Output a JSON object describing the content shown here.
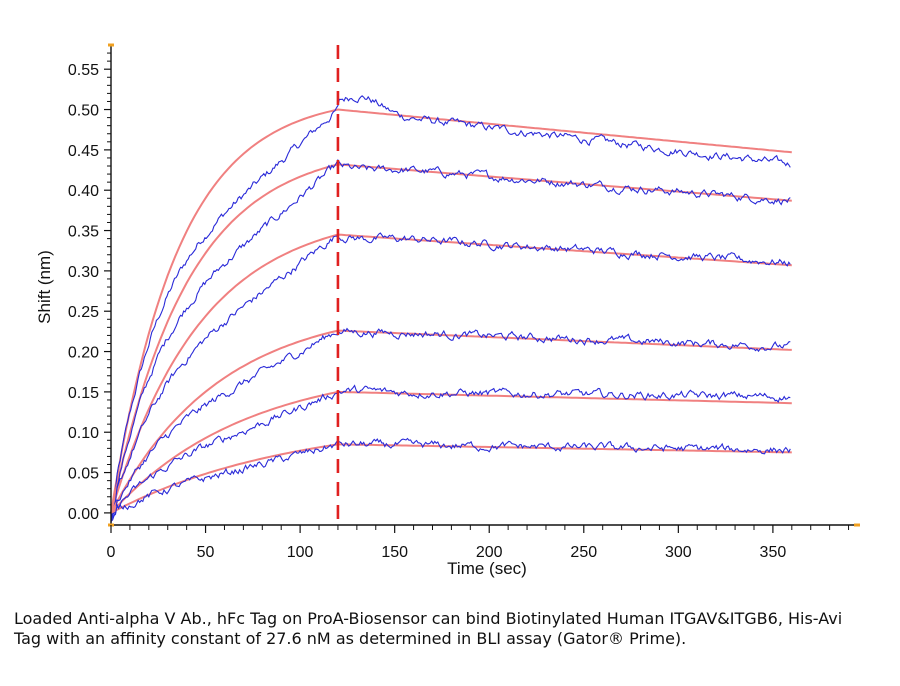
{
  "caption": "Loaded Anti-alpha V Ab., hFc Tag on ProA-Biosensor can bind Biotinylated Human ITGAV&ITGB6, His-Avi Tag with an affinity constant of 27.6 nM as determined in BLI assay (Gator® Prime).",
  "chart_data": {
    "type": "line",
    "xlabel": "Time (sec)",
    "ylabel": "Shift (nm)",
    "xlim": [
      0,
      395
    ],
    "ylim": [
      -0.015,
      0.58
    ],
    "xticks": [
      0,
      50,
      100,
      150,
      200,
      250,
      300,
      350
    ],
    "yticks": [
      0.0,
      0.05,
      0.1,
      0.15,
      0.2,
      0.25,
      0.3,
      0.35,
      0.4,
      0.45,
      0.5,
      0.55
    ],
    "association_end": 120,
    "grid": false,
    "colors": {
      "measured": "#2a2ad8",
      "fit": "#f08080",
      "marker": "#e02020",
      "axis_accent": "#f0a020"
    },
    "series": [
      {
        "plateau_at_120": 0.5,
        "measured_peak": 0.52,
        "fit_end": 0.447,
        "measured_end": 0.432
      },
      {
        "plateau_at_120": 0.432,
        "measured_peak": 0.428,
        "fit_end": 0.387,
        "measured_end": 0.387
      },
      {
        "plateau_at_120": 0.345,
        "measured_peak": 0.342,
        "fit_end": 0.307,
        "measured_end": 0.31
      },
      {
        "plateau_at_120": 0.226,
        "measured_peak": 0.225,
        "fit_end": 0.202,
        "measured_end": 0.206
      },
      {
        "plateau_at_120": 0.15,
        "measured_peak": 0.152,
        "fit_end": 0.136,
        "measured_end": 0.144
      },
      {
        "plateau_at_120": 0.085,
        "measured_peak": 0.085,
        "fit_end": 0.075,
        "measured_end": 0.078
      }
    ]
  }
}
